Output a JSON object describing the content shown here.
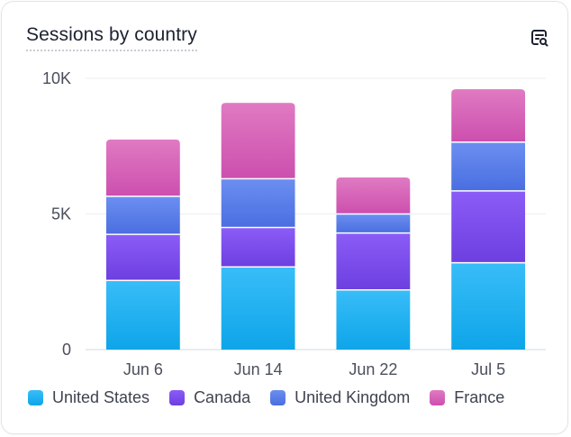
{
  "card": {
    "title": "Sessions by country",
    "action_icon": "search-insight-icon"
  },
  "colors": {
    "grid": "#eceef1",
    "axis": "#d6d9df",
    "divider": "#ffffff"
  },
  "chart_data": {
    "type": "bar",
    "stacked": true,
    "title": "Sessions by country",
    "categories": [
      "Jun 6",
      "Jun 14",
      "Jun 22",
      "Jul 5"
    ],
    "ylim": [
      0,
      10000
    ],
    "yticks": [
      {
        "value": 0,
        "label": "0"
      },
      {
        "value": 5000,
        "label": "5K"
      },
      {
        "value": 10000,
        "label": "10K"
      }
    ],
    "grid": true,
    "legend_position": "bottom",
    "series": [
      {
        "name": "United States",
        "color_top": "#38bdf8",
        "color_bottom": "#0ea5e9",
        "values": [
          2550,
          3050,
          2200,
          3200
        ]
      },
      {
        "name": "Canada",
        "color_top": "#8b5cf6",
        "color_bottom": "#6d3fe0",
        "values": [
          1700,
          1450,
          2100,
          2650
        ]
      },
      {
        "name": "United Kingdom",
        "color_top": "#6b8ff0",
        "color_bottom": "#4a6ee0",
        "values": [
          1400,
          1800,
          700,
          1800
        ]
      },
      {
        "name": "France",
        "color_top": "#e07ac2",
        "color_bottom": "#cc4fae",
        "values": [
          2100,
          2800,
          1350,
          1950
        ]
      }
    ]
  }
}
